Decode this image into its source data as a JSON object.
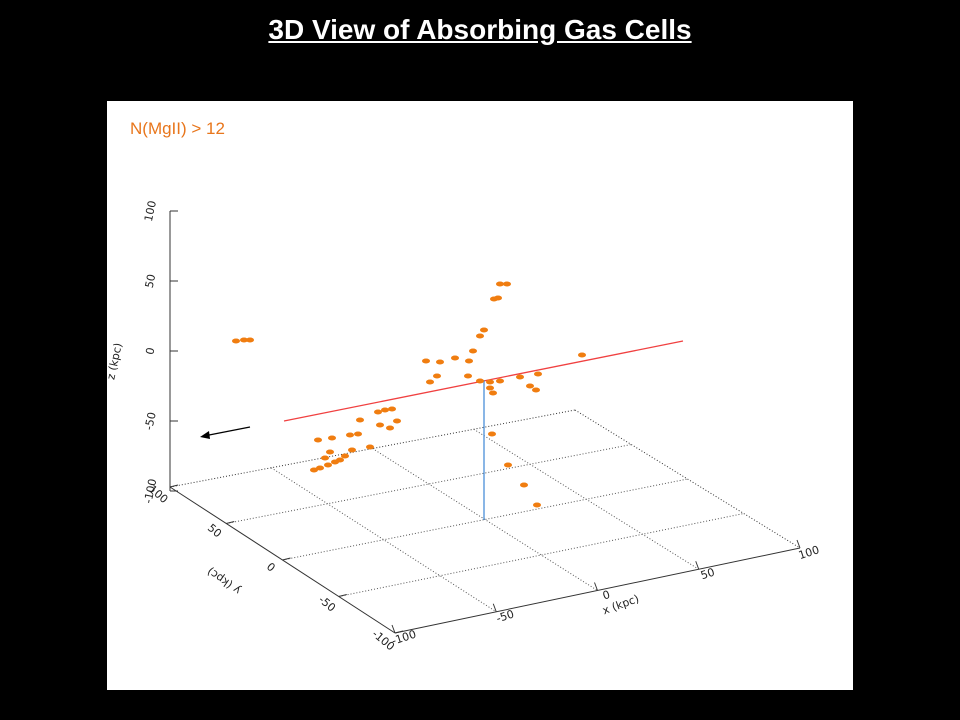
{
  "slide": {
    "title": "3D View of Absorbing Gas Cells"
  },
  "figure": {
    "legend": "N(MgII) > 12",
    "z_axis": {
      "label": "z (kpc)",
      "ticks": [
        "100",
        "50",
        "0",
        "-50",
        "-100"
      ]
    },
    "y_axis": {
      "label": "y (kpc)",
      "ticks": [
        "100",
        "50",
        "0",
        "-50",
        "-100"
      ]
    },
    "x_axis": {
      "label": "x (kpc)",
      "ticks": [
        "-100",
        "-50",
        "0",
        "50",
        "100"
      ]
    }
  }
}
